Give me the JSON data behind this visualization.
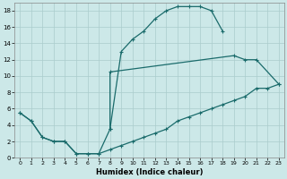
{
  "xlabel": "Humidex (Indice chaleur)",
  "xlim": [
    -0.5,
    23.5
  ],
  "ylim": [
    0,
    19
  ],
  "xticks": [
    0,
    1,
    2,
    3,
    4,
    5,
    6,
    7,
    8,
    9,
    10,
    11,
    12,
    13,
    14,
    15,
    16,
    17,
    18,
    19,
    20,
    21,
    22,
    23
  ],
  "yticks": [
    0,
    2,
    4,
    6,
    8,
    10,
    12,
    14,
    16,
    18
  ],
  "bg_color": "#cce8e8",
  "grid_color": "#aacccc",
  "line_color": "#1a6b6b",
  "curve1_x": [
    0,
    1,
    2,
    3,
    4,
    5,
    6,
    7,
    8,
    9,
    10,
    11,
    12,
    13,
    14,
    15,
    16,
    17,
    18
  ],
  "curve1_y": [
    5.5,
    4.5,
    2.5,
    2.0,
    2.0,
    0.5,
    0.5,
    0.5,
    3.5,
    13.0,
    14.5,
    15.5,
    17.0,
    18.0,
    18.5,
    18.5,
    18.5,
    18.0,
    15.5
  ],
  "curve2_x": [
    8,
    8,
    19,
    20,
    21,
    23
  ],
  "curve2_y": [
    3.5,
    10.5,
    12.5,
    12.0,
    12.0,
    9.0
  ],
  "curve3_x": [
    0,
    1,
    2,
    3,
    4,
    5,
    6,
    7,
    8,
    9,
    10,
    11,
    12,
    13,
    14,
    15,
    16,
    17,
    18,
    19,
    20,
    21,
    22,
    23
  ],
  "curve3_y": [
    5.5,
    4.5,
    2.5,
    2.0,
    2.0,
    0.5,
    0.5,
    0.5,
    1.0,
    1.5,
    2.0,
    2.5,
    3.0,
    3.5,
    4.5,
    5.0,
    5.5,
    6.0,
    6.5,
    7.0,
    7.5,
    8.5,
    8.5,
    9.0
  ]
}
